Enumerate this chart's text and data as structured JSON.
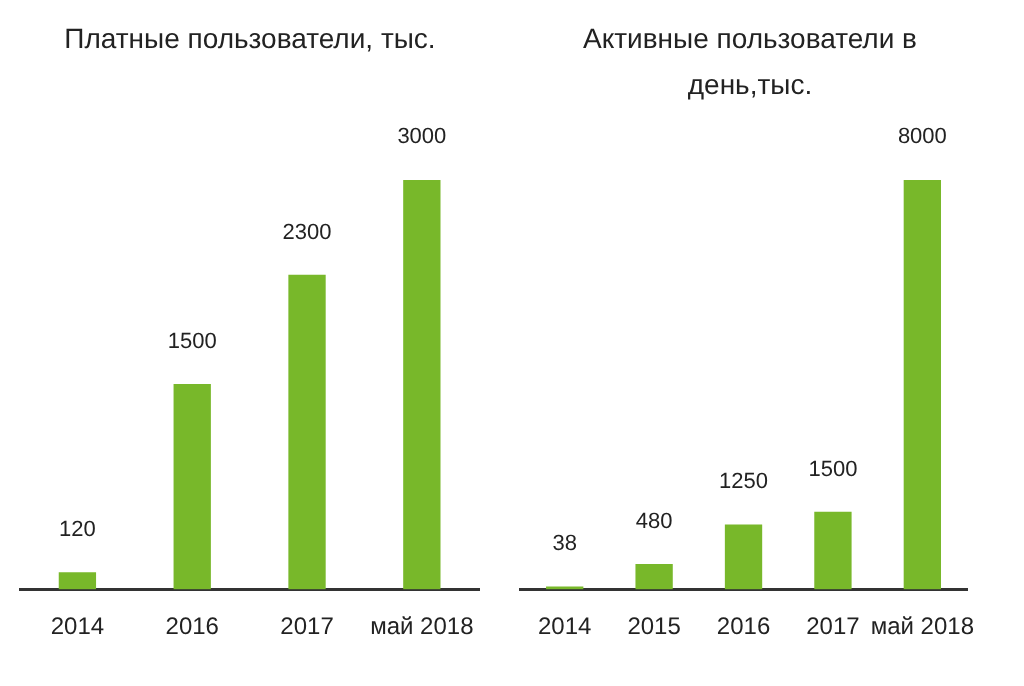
{
  "chart_data": [
    {
      "type": "bar",
      "title": "Платные пользователи, тыс.",
      "categories": [
        "2014",
        "2016",
        "2017",
        "май 2018"
      ],
      "values": [
        120,
        1500,
        2300,
        3000
      ],
      "color": "#78b82a",
      "ylim": [
        0,
        3000
      ],
      "data_labels": true,
      "tick_labels": "x",
      "grid": false,
      "legend": false
    },
    {
      "type": "bar",
      "title": "Активные пользователи в день,тыс.",
      "categories": [
        "2014",
        "2015",
        "2016",
        "2017",
        "май 2018"
      ],
      "values": [
        38,
        480,
        1250,
        1500,
        8000
      ],
      "color": "#78b82a",
      "ylim": [
        0,
        8000
      ],
      "data_labels": true,
      "tick_labels": "x",
      "grid": false,
      "legend": false
    }
  ]
}
